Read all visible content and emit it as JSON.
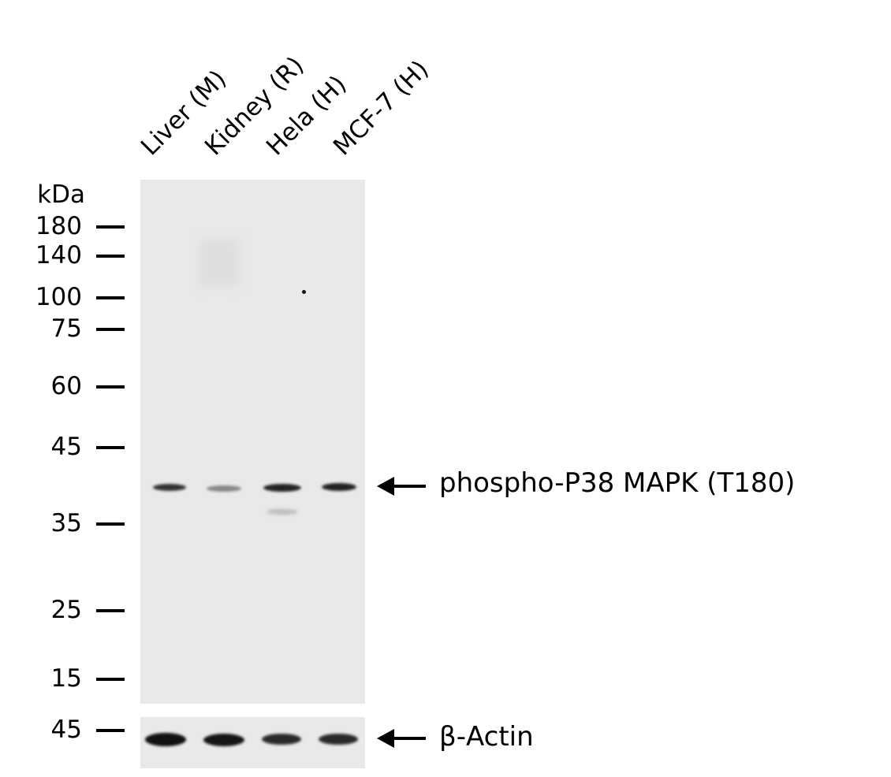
{
  "lanes": [
    {
      "label": "Liver (M)"
    },
    {
      "label": "Kidney (R)"
    },
    {
      "label": "Hela (H)"
    },
    {
      "label": "MCF-7 (H)"
    }
  ],
  "marker_unit": "kDa",
  "markers": [
    "180",
    "140",
    "100",
    "75",
    "60",
    "45",
    "35",
    "25",
    "15"
  ],
  "actin_marker": "45",
  "targets": {
    "main": "phospho-P38 MAPK (T180)",
    "loading": "β-Actin"
  },
  "colors": {
    "membrane": "#e9e9e9",
    "band": "#1a1a1a"
  }
}
